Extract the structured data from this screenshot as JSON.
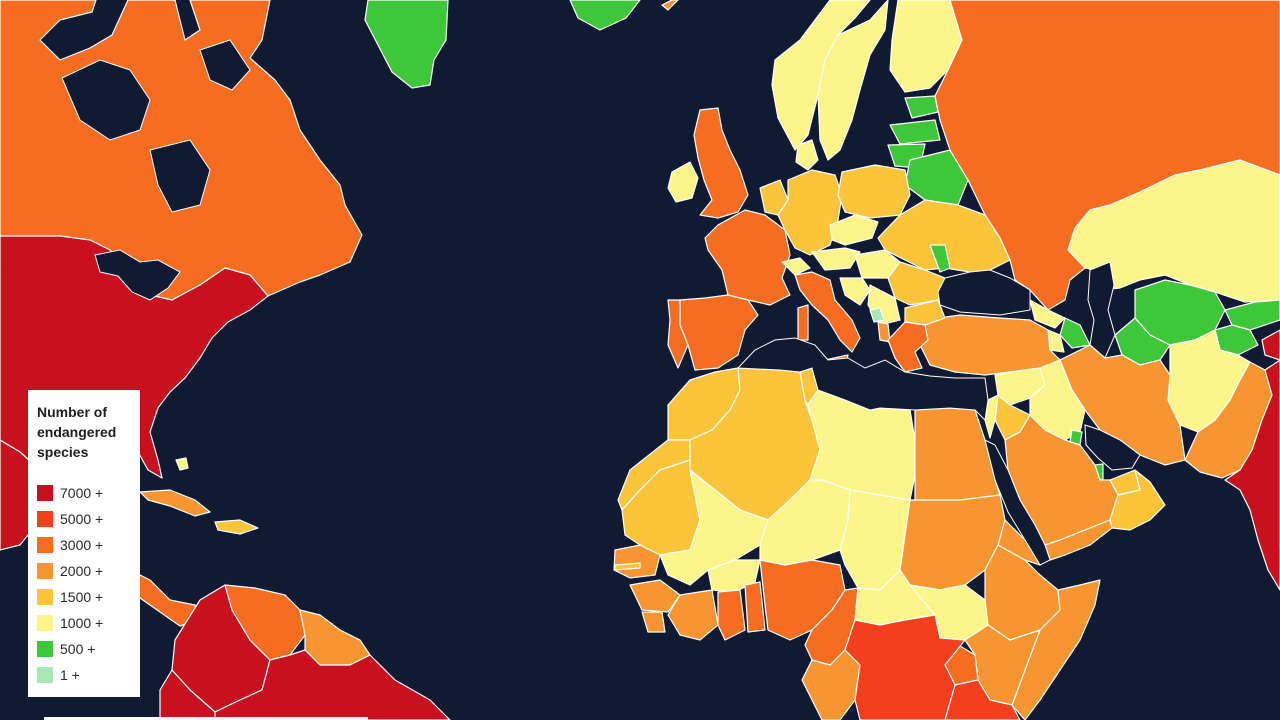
{
  "legend": {
    "title": "Number of endangered species",
    "items": [
      {
        "label": "7000 +",
        "color": "#c8101e"
      },
      {
        "label": "5000 +",
        "color": "#f2401f"
      },
      {
        "label": "3000 +",
        "color": "#f66d22"
      },
      {
        "label": "2000 +",
        "color": "#f79530"
      },
      {
        "label": "1500 +",
        "color": "#fcc43b"
      },
      {
        "label": "1000 +",
        "color": "#fbf58a"
      },
      {
        "label": "500 +",
        "color": "#3fc73a"
      },
      {
        "label": "1 +",
        "color": "#a9e9b6"
      }
    ]
  },
  "colors": {
    "ocean": "#111a33",
    "border": "#ffffff"
  }
}
